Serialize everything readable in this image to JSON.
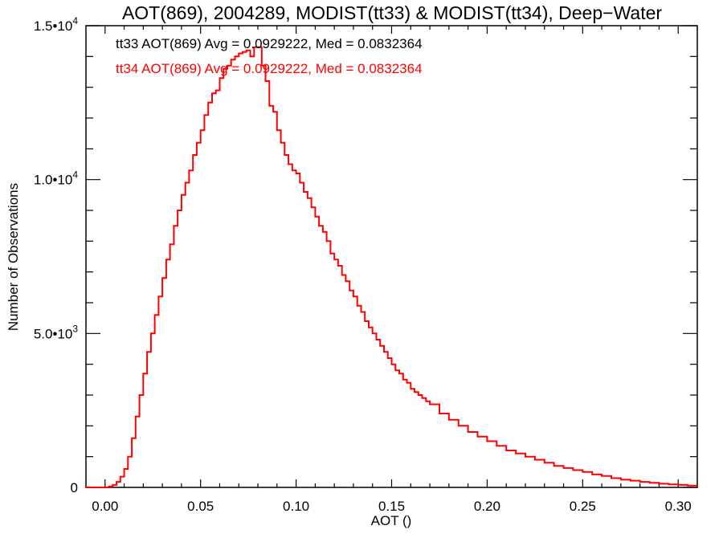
{
  "chart_data": {
    "type": "line",
    "step": true,
    "title": "AOT(869), 2004289, MODIST(tt33) & MODIST(tt34), Deep−Water",
    "xlabel": "AOT ()",
    "ylabel": "Number of Observations",
    "xlim": [
      -0.01,
      0.31
    ],
    "ylim": [
      0,
      15000
    ],
    "x_ticks": [
      0.0,
      0.05,
      0.1,
      0.15,
      0.2,
      0.25,
      0.3
    ],
    "x_tick_labels": [
      "0.00",
      "0.05",
      "0.10",
      "0.15",
      "0.20",
      "0.25",
      "0.30"
    ],
    "y_ticks": [
      {
        "value": 0,
        "mantissa": "0",
        "exp": ""
      },
      {
        "value": 5000,
        "mantissa": "5.0•10",
        "exp": "3"
      },
      {
        "value": 10000,
        "mantissa": "1.0•10",
        "exp": "4"
      },
      {
        "value": 15000,
        "mantissa": "1.5•10",
        "exp": "4"
      }
    ],
    "legend": [
      {
        "text": "tt33 AOT(869) Avg = 0.0929222, Med = 0.0832364",
        "color": "#000000"
      },
      {
        "text": "tt34 AOT(869) Avg = 0.0929222, Med = 0.0832364",
        "color": "#ff0000"
      }
    ],
    "legend_position": "top-left",
    "series": [
      {
        "color": "#ff0000",
        "x": [
          -0.01,
          0.0,
          0.002,
          0.004,
          0.006,
          0.008,
          0.01,
          0.012,
          0.014,
          0.016,
          0.018,
          0.02,
          0.022,
          0.024,
          0.026,
          0.028,
          0.03,
          0.032,
          0.034,
          0.036,
          0.038,
          0.04,
          0.042,
          0.044,
          0.046,
          0.048,
          0.05,
          0.052,
          0.054,
          0.056,
          0.058,
          0.06,
          0.062,
          0.064,
          0.066,
          0.068,
          0.07,
          0.072,
          0.074,
          0.076,
          0.078,
          0.08,
          0.082,
          0.084,
          0.086,
          0.088,
          0.09,
          0.092,
          0.094,
          0.096,
          0.098,
          0.1,
          0.102,
          0.104,
          0.106,
          0.108,
          0.11,
          0.112,
          0.114,
          0.116,
          0.118,
          0.12,
          0.122,
          0.124,
          0.126,
          0.128,
          0.13,
          0.132,
          0.134,
          0.136,
          0.138,
          0.14,
          0.142,
          0.144,
          0.146,
          0.148,
          0.15,
          0.152,
          0.154,
          0.156,
          0.158,
          0.16,
          0.162,
          0.164,
          0.166,
          0.168,
          0.17,
          0.175,
          0.18,
          0.185,
          0.19,
          0.195,
          0.2,
          0.205,
          0.21,
          0.215,
          0.22,
          0.225,
          0.23,
          0.235,
          0.24,
          0.245,
          0.25,
          0.255,
          0.26,
          0.265,
          0.27,
          0.275,
          0.28,
          0.285,
          0.29,
          0.295,
          0.3,
          0.305,
          0.31
        ],
        "y": [
          0,
          0,
          30,
          80,
          180,
          350,
          600,
          1000,
          1600,
          2300,
          3000,
          3700,
          4400,
          5000,
          5600,
          6200,
          6800,
          7400,
          7900,
          8500,
          9000,
          9500,
          9900,
          10300,
          10800,
          11200,
          11600,
          12100,
          12500,
          12800,
          12900,
          13300,
          13600,
          13700,
          13900,
          14000,
          14100,
          14150,
          14200,
          14000,
          14300,
          14300,
          13700,
          13200,
          12400,
          12200,
          11600,
          11200,
          10800,
          10500,
          10300,
          10200,
          9900,
          9600,
          9400,
          9100,
          8800,
          8500,
          8300,
          8000,
          7600,
          7400,
          7200,
          6900,
          6700,
          6400,
          6200,
          5900,
          5700,
          5400,
          5200,
          5000,
          4800,
          4600,
          4400,
          4200,
          4000,
          3800,
          3700,
          3500,
          3400,
          3200,
          3100,
          3000,
          2900,
          2800,
          2700,
          2400,
          2200,
          2000,
          1800,
          1650,
          1500,
          1350,
          1200,
          1100,
          1000,
          900,
          800,
          700,
          630,
          560,
          500,
          420,
          370,
          300,
          250,
          220,
          180,
          150,
          120,
          100,
          80,
          60,
          50
        ]
      }
    ]
  }
}
